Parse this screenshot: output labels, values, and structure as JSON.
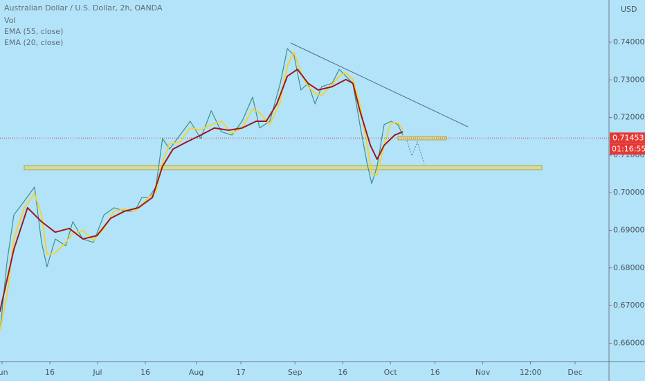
{
  "chart_data": {
    "type": "line",
    "title": "Australian Dollar / U.S. Dollar, 2h, OANDA",
    "legend_items": [
      "Vol",
      "EMA (55, close)",
      "EMA (20, close)"
    ],
    "currency": "USD",
    "countdown": "01:16:55",
    "last_price": {
      "value": 0.71453,
      "label": "0.71453"
    },
    "xlim": [
      -0.65,
      190.65
    ],
    "ylim": [
      0.6551,
      0.75123
    ],
    "xticks": [
      {
        "value": 0,
        "label": "Jun"
      },
      {
        "value": 15,
        "label": "16"
      },
      {
        "value": 30,
        "label": "Jul"
      },
      {
        "value": 45,
        "label": "16"
      },
      {
        "value": 61,
        "label": "Aug"
      },
      {
        "value": 75,
        "label": "17"
      },
      {
        "value": 92,
        "label": "Sep"
      },
      {
        "value": 107,
        "label": "16"
      },
      {
        "value": 122,
        "label": "Oct"
      },
      {
        "value": 136,
        "label": "16"
      },
      {
        "value": 151,
        "label": "Nov"
      },
      {
        "value": 166,
        "label": "12:00"
      },
      {
        "value": 180,
        "label": "Dec"
      }
    ],
    "yticks": [
      {
        "value": 0.66,
        "label": "0.66000"
      },
      {
        "value": 0.67,
        "label": "0.67000"
      },
      {
        "value": 0.68,
        "label": "0.68000"
      },
      {
        "value": 0.69,
        "label": "0.69000"
      },
      {
        "value": 0.7,
        "label": "0.70000"
      },
      {
        "value": 0.71,
        "label": "0.71000"
      },
      {
        "value": 0.72,
        "label": "0.72000"
      },
      {
        "value": 0.73,
        "label": "0.73000"
      },
      {
        "value": 0.74,
        "label": "0.74000"
      }
    ],
    "x": [
      -0.6,
      1.5,
      3.7,
      7,
      10.2,
      12.4,
      14.1,
      16.7,
      20,
      22.2,
      25.4,
      28.7,
      32,
      35.2,
      38.5,
      41.7,
      43.9,
      46.1,
      48.3,
      50.4,
      52.6,
      55.9,
      59.1,
      62.4,
      65.7,
      68.9,
      72.2,
      75.4,
      78.7,
      80.9,
      84.1,
      87.4,
      89.6,
      91.7,
      93.9,
      96.1,
      98.3,
      100.4,
      103.7,
      105.9,
      108,
      110.2,
      112.4,
      114.6,
      116.1,
      117.8,
      120,
      122.2,
      124.3,
      125.9
    ],
    "series": [
      {
        "color": "#3d8f86",
        "values": [
          0.6634,
          0.6813,
          0.6941,
          0.6978,
          0.7015,
          0.6868,
          0.6803,
          0.6877,
          0.6859,
          0.6923,
          0.6877,
          0.6868,
          0.6941,
          0.696,
          0.6951,
          0.6951,
          0.6987,
          0.6987,
          0.7015,
          0.7144,
          0.7116,
          0.7153,
          0.719,
          0.7144,
          0.7218,
          0.7162,
          0.7153,
          0.719,
          0.7254,
          0.7172,
          0.719,
          0.7291,
          0.7383,
          0.7365,
          0.7273,
          0.7291,
          0.7236,
          0.7282,
          0.7291,
          0.7328,
          0.731,
          0.7291,
          0.7181,
          0.708,
          0.7024,
          0.707,
          0.7181,
          0.719,
          0.7181,
          0.7153
        ]
      },
      {
        "name": "EMA (20, close)",
        "color": "#f2d23a",
        "values": [
          0.6634,
          0.6724,
          0.6877,
          0.696,
          0.6997,
          0.6942,
          0.6836,
          0.684,
          0.6868,
          0.6891,
          0.69,
          0.6873,
          0.6905,
          0.6951,
          0.6956,
          0.6951,
          0.6969,
          0.6987,
          0.7001,
          0.708,
          0.713,
          0.7135,
          0.7172,
          0.7167,
          0.7181,
          0.719,
          0.7158,
          0.7172,
          0.7222,
          0.7213,
          0.7181,
          0.7241,
          0.7337,
          0.7374,
          0.7319,
          0.7282,
          0.7264,
          0.7259,
          0.7287,
          0.731,
          0.7319,
          0.7301,
          0.7236,
          0.7131,
          0.7052,
          0.7047,
          0.7126,
          0.7186,
          0.7186,
          0.7167
        ]
      },
      {
        "name": "EMA (55, close)",
        "color": "#a0151e",
        "x": [
          -0.7,
          3.7,
          8,
          12.4,
          16.7,
          21.1,
          25.4,
          29.8,
          34.1,
          38.5,
          42.8,
          47.2,
          50.4,
          53.7,
          58,
          62.4,
          66.7,
          71.1,
          75.4,
          79.8,
          83,
          86.3,
          89.6,
          92.8,
          96.1,
          99.3,
          103.7,
          108,
          110.2,
          112.4,
          115.7,
          117.8,
          120,
          123.3,
          125.9
        ],
        "values": [
          0.6684,
          0.6849,
          0.696,
          0.6923,
          0.6895,
          0.6905,
          0.6877,
          0.6886,
          0.6932,
          0.6951,
          0.696,
          0.6987,
          0.707,
          0.7116,
          0.7135,
          0.7153,
          0.7172,
          0.7166,
          0.7172,
          0.719,
          0.719,
          0.7236,
          0.731,
          0.7328,
          0.7291,
          0.7273,
          0.7282,
          0.7301,
          0.7291,
          0.7218,
          0.7126,
          0.7089,
          0.7126,
          0.7153,
          0.7162
        ]
      }
    ]
  }
}
